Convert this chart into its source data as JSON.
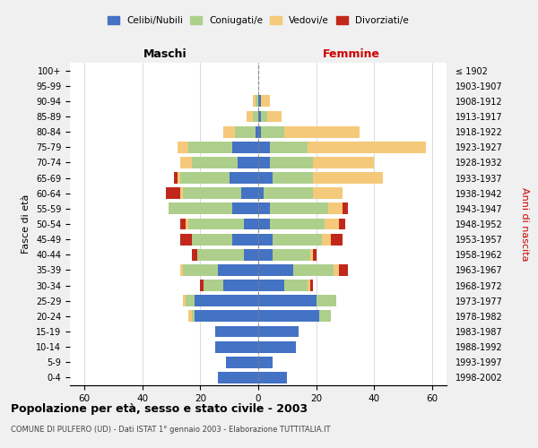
{
  "age_groups": [
    "0-4",
    "5-9",
    "10-14",
    "15-19",
    "20-24",
    "25-29",
    "30-34",
    "35-39",
    "40-44",
    "45-49",
    "50-54",
    "55-59",
    "60-64",
    "65-69",
    "70-74",
    "75-79",
    "80-84",
    "85-89",
    "90-94",
    "95-99",
    "100+"
  ],
  "birth_years": [
    "1998-2002",
    "1993-1997",
    "1988-1992",
    "1983-1987",
    "1978-1982",
    "1973-1977",
    "1968-1972",
    "1963-1967",
    "1958-1962",
    "1953-1957",
    "1948-1952",
    "1943-1947",
    "1938-1942",
    "1933-1937",
    "1928-1932",
    "1923-1927",
    "1918-1922",
    "1913-1917",
    "1908-1912",
    "1903-1907",
    "≤ 1902"
  ],
  "males": {
    "celibi": [
      14,
      11,
      15,
      15,
      22,
      22,
      12,
      14,
      5,
      9,
      5,
      9,
      6,
      10,
      7,
      9,
      1,
      0,
      0,
      0,
      0
    ],
    "coniugati": [
      0,
      0,
      0,
      0,
      1,
      3,
      7,
      12,
      16,
      14,
      19,
      22,
      20,
      17,
      16,
      15,
      7,
      2,
      1,
      0,
      0
    ],
    "vedovi": [
      0,
      0,
      0,
      0,
      1,
      1,
      0,
      1,
      0,
      0,
      1,
      0,
      1,
      1,
      4,
      4,
      4,
      2,
      1,
      0,
      0
    ],
    "divorziati": [
      0,
      0,
      0,
      0,
      0,
      0,
      1,
      0,
      2,
      4,
      2,
      0,
      5,
      1,
      0,
      0,
      0,
      0,
      0,
      0,
      0
    ]
  },
  "females": {
    "nubili": [
      10,
      5,
      13,
      14,
      21,
      20,
      9,
      12,
      5,
      5,
      4,
      4,
      2,
      5,
      4,
      4,
      1,
      1,
      1,
      0,
      0
    ],
    "coniugate": [
      0,
      0,
      0,
      0,
      4,
      7,
      8,
      14,
      13,
      17,
      19,
      20,
      17,
      14,
      15,
      13,
      8,
      2,
      0,
      0,
      0
    ],
    "vedove": [
      0,
      0,
      0,
      0,
      0,
      0,
      1,
      2,
      1,
      3,
      5,
      5,
      10,
      24,
      21,
      41,
      26,
      5,
      3,
      0,
      0
    ],
    "divorziate": [
      0,
      0,
      0,
      0,
      0,
      0,
      1,
      3,
      1,
      4,
      2,
      2,
      0,
      0,
      0,
      0,
      0,
      0,
      0,
      0,
      0
    ]
  },
  "colors": {
    "celibi": "#4472C4",
    "coniugati": "#AECF8B",
    "vedovi": "#F5C97A",
    "divorziati": "#C0281C"
  },
  "title": "Popolazione per età, sesso e stato civile - 2003",
  "subtitle": "COMUNE DI PULFERO (UD) - Dati ISTAT 1° gennaio 2003 - Elaborazione TUTTITALIA.IT",
  "xlabel_left": "Maschi",
  "xlabel_right": "Femmine",
  "ylabel_left": "Fasce di età",
  "ylabel_right": "Anni di nascita",
  "xlim": 65,
  "xticks": [
    -60,
    -40,
    -20,
    0,
    20,
    40,
    60
  ],
  "legend_labels": [
    "Celibi/Nubili",
    "Coniugati/e",
    "Vedovi/e",
    "Divorziati/e"
  ],
  "background_color": "#f0f0f0",
  "plot_bg": "#ffffff"
}
